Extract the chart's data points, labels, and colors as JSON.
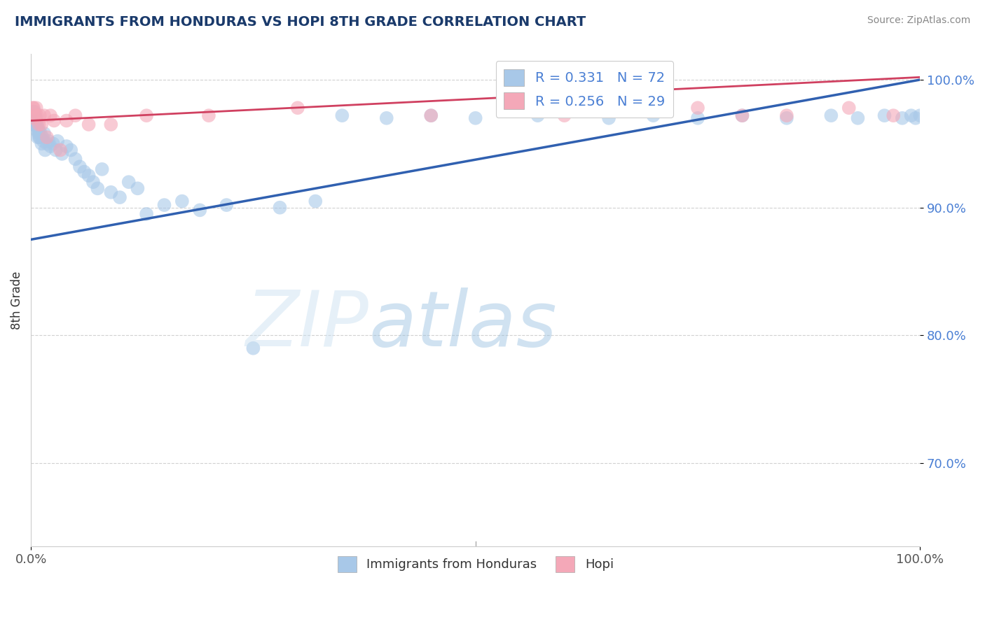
{
  "title": "IMMIGRANTS FROM HONDURAS VS HOPI 8TH GRADE CORRELATION CHART",
  "source": "Source: ZipAtlas.com",
  "ylabel": "8th Grade",
  "legend_label_blue": "Immigrants from Honduras",
  "legend_label_pink": "Hopi",
  "blue_R": 0.331,
  "blue_N": 72,
  "pink_R": 0.256,
  "pink_N": 29,
  "blue_color": "#a8c8e8",
  "pink_color": "#f4a8b8",
  "blue_line_color": "#3060b0",
  "pink_line_color": "#d04060",
  "blue_x": [
    0.1,
    0.2,
    0.25,
    0.3,
    0.3,
    0.35,
    0.4,
    0.4,
    0.5,
    0.5,
    0.55,
    0.6,
    0.6,
    0.7,
    0.7,
    0.75,
    0.8,
    0.85,
    0.9,
    0.95,
    1.0,
    1.1,
    1.2,
    1.3,
    1.4,
    1.5,
    1.6,
    1.8,
    2.0,
    2.2,
    2.5,
    2.8,
    3.0,
    3.5,
    4.0,
    4.5,
    5.0,
    5.5,
    6.0,
    6.5,
    7.0,
    7.5,
    8.0,
    9.0,
    10.0,
    11.0,
    12.0,
    13.0,
    15.0,
    17.0,
    19.0,
    22.0,
    25.0,
    28.0,
    32.0,
    35.0,
    40.0,
    45.0,
    50.0,
    57.0,
    65.0,
    70.0,
    75.0,
    80.0,
    85.0,
    90.0,
    93.0,
    96.0,
    98.0,
    99.0,
    99.5,
    100.0
  ],
  "blue_y": [
    97.0,
    97.5,
    96.5,
    97.0,
    97.5,
    96.8,
    97.0,
    97.5,
    96.5,
    97.2,
    96.8,
    97.0,
    96.5,
    96.0,
    96.5,
    95.5,
    96.2,
    95.8,
    96.0,
    95.5,
    95.5,
    95.8,
    95.0,
    95.5,
    95.2,
    95.8,
    94.5,
    95.0,
    95.2,
    94.8,
    95.0,
    94.5,
    95.2,
    94.2,
    94.8,
    94.5,
    93.8,
    93.2,
    92.8,
    92.5,
    92.0,
    91.5,
    93.0,
    91.2,
    90.8,
    92.0,
    91.5,
    89.5,
    90.2,
    90.5,
    89.8,
    90.2,
    79.0,
    90.0,
    90.5,
    97.2,
    97.0,
    97.2,
    97.0,
    97.2,
    97.0,
    97.2,
    97.0,
    97.2,
    97.0,
    97.2,
    97.0,
    97.2,
    97.0,
    97.2,
    97.0,
    97.2
  ],
  "pink_x": [
    0.2,
    0.3,
    0.3,
    0.5,
    0.6,
    0.7,
    0.9,
    1.0,
    1.2,
    1.5,
    1.8,
    2.2,
    2.6,
    3.3,
    4.0,
    5.0,
    6.5,
    9.0,
    13.0,
    20.0,
    30.0,
    45.0,
    60.0,
    70.0,
    75.0,
    80.0,
    85.0,
    92.0,
    97.0
  ],
  "pink_y": [
    97.8,
    97.0,
    97.8,
    97.2,
    97.8,
    97.2,
    96.5,
    97.2,
    96.5,
    97.2,
    95.5,
    97.2,
    96.8,
    94.5,
    96.8,
    97.2,
    96.5,
    96.5,
    97.2,
    97.2,
    97.8,
    97.2,
    97.2,
    97.8,
    97.8,
    97.2,
    97.2,
    97.8,
    97.2
  ],
  "blue_trendline_start_y": 87.5,
  "blue_trendline_end_y": 100.0,
  "pink_trendline_start_y": 96.8,
  "pink_trendline_end_y": 100.2,
  "xlim": [
    0,
    100
  ],
  "ylim": [
    63.5,
    102.0
  ],
  "yticks": [
    70.0,
    80.0,
    90.0,
    100.0
  ],
  "ytick_labels": [
    "70.0%",
    "80.0%",
    "90.0%",
    "100.0%"
  ],
  "grid_color": "#cccccc",
  "title_color": "#1a3a6b",
  "source_color": "#888888",
  "tick_label_color_y": "#4a7fd4",
  "tick_label_color_x": "#555555"
}
